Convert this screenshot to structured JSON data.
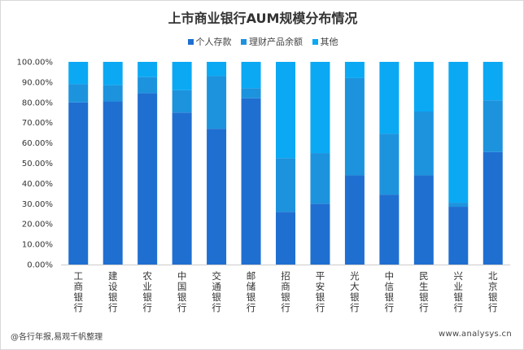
{
  "source_note": "@各行年报,易观千帆整理",
  "watermark": "www.analysys.cn",
  "colors": {
    "s1": "#1f6fd1",
    "s2": "#1d93dd",
    "s3": "#0ba9f4"
  },
  "chart_data": {
    "type": "bar",
    "stacked": true,
    "title": "上市商业银行AUM规模分布情况",
    "xlabel": "",
    "ylabel": "",
    "ylim": [
      0,
      100
    ],
    "yticks": [
      "0.00%",
      "10.00%",
      "20.00%",
      "30.00%",
      "40.00%",
      "50.00%",
      "60.00%",
      "70.00%",
      "80.00%",
      "90.00%",
      "100.00%"
    ],
    "legend_position": "top",
    "grid": false,
    "categories": [
      "工商银行",
      "建设银行",
      "农业银行",
      "中国银行",
      "交通银行",
      "邮储银行",
      "招商银行",
      "平安银行",
      "光大银行",
      "中信银行",
      "民生银行",
      "兴业银行",
      "北京银行"
    ],
    "series": [
      {
        "name": "个人存款",
        "values": [
          80,
          80.5,
          84.5,
          75,
          67,
          82,
          26,
          30,
          44,
          34.5,
          44,
          28.5,
          55.5
        ]
      },
      {
        "name": "理财产品余额",
        "values": [
          9,
          8,
          8,
          11,
          26,
          5,
          26.5,
          25,
          48,
          30,
          31.5,
          2,
          25.5
        ]
      },
      {
        "name": "其他",
        "values": [
          11,
          11.5,
          7.5,
          14,
          7,
          13,
          47.5,
          45,
          8,
          35.5,
          24.5,
          69.5,
          19
        ]
      }
    ]
  }
}
